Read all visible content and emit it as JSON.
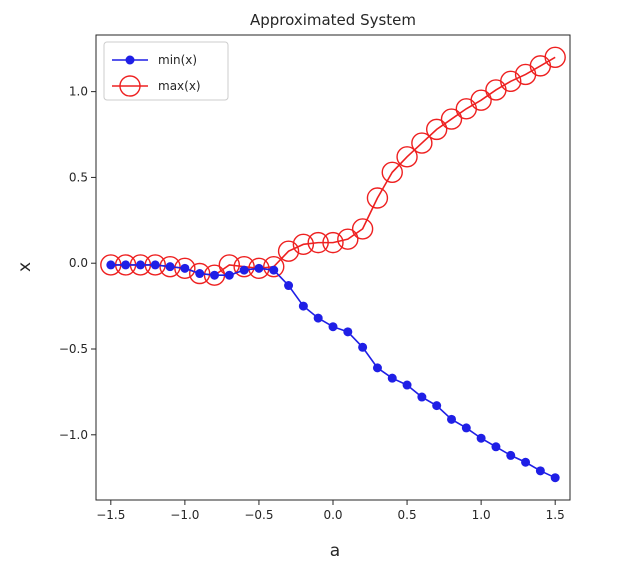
{
  "chart_data": {
    "type": "line",
    "title": "Approximated System",
    "xlabel": "a",
    "ylabel": "x",
    "xlim": [
      -1.6,
      1.6
    ],
    "ylim": [
      -1.38,
      1.33
    ],
    "xticks": [
      -1.5,
      -1.0,
      -0.5,
      0.0,
      0.5,
      1.0,
      1.5
    ],
    "xtick_labels": [
      "−1.5",
      "−1.0",
      "−0.5",
      "0.0",
      "0.5",
      "1.0",
      "1.5"
    ],
    "yticks": [
      -1.0,
      -0.5,
      0.0,
      0.5,
      1.0
    ],
    "ytick_labels": [
      "−1.0",
      "−0.5",
      "0.0",
      "0.5",
      "1.0"
    ],
    "grid": false,
    "legend": "upper-left",
    "x": [
      -1.5,
      -1.4,
      -1.3,
      -1.2,
      -1.1,
      -1.0,
      -0.9,
      -0.8,
      -0.7,
      -0.6,
      -0.5,
      -0.4,
      -0.3,
      -0.2,
      -0.1,
      0.0,
      0.1,
      0.2,
      0.3,
      0.4,
      0.5,
      0.6,
      0.7,
      0.8,
      0.9,
      1.0,
      1.1,
      1.2,
      1.3,
      1.4,
      1.5
    ],
    "series": [
      {
        "name": "min(x)",
        "color": "#1f1fe6",
        "marker": "filled-circle",
        "values": [
          -0.01,
          -0.01,
          -0.01,
          -0.01,
          -0.02,
          -0.03,
          -0.06,
          -0.07,
          -0.07,
          -0.04,
          -0.03,
          -0.04,
          -0.13,
          -0.25,
          -0.32,
          -0.37,
          -0.4,
          -0.49,
          -0.61,
          -0.67,
          -0.71,
          -0.78,
          -0.83,
          -0.91,
          -0.96,
          -1.02,
          -1.07,
          -1.12,
          -1.16,
          -1.21,
          -1.25
        ]
      },
      {
        "name": "max(x)",
        "color": "#ee2020",
        "marker": "open-circle",
        "values": [
          -0.01,
          -0.01,
          -0.01,
          -0.01,
          -0.02,
          -0.03,
          -0.06,
          -0.07,
          -0.01,
          -0.02,
          -0.03,
          -0.02,
          0.07,
          0.11,
          0.12,
          0.12,
          0.14,
          0.2,
          0.38,
          0.53,
          0.62,
          0.7,
          0.78,
          0.84,
          0.9,
          0.95,
          1.01,
          1.06,
          1.1,
          1.15,
          1.2
        ]
      }
    ]
  }
}
